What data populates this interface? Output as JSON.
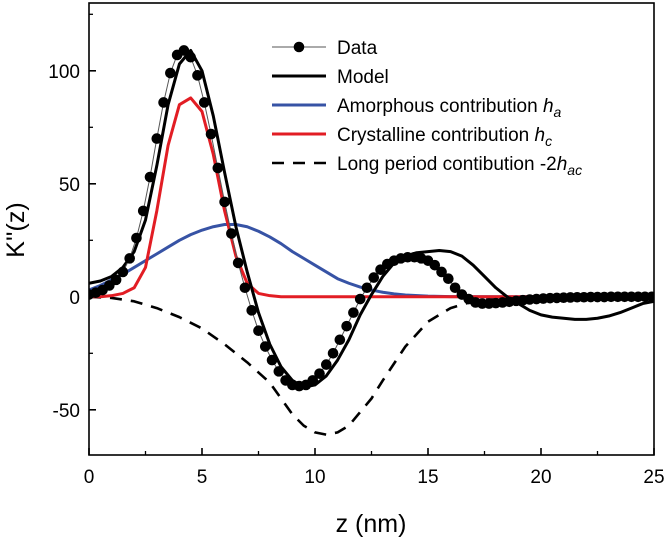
{
  "chart_data": {
    "type": "line",
    "xlabel": "z (nm)",
    "ylabel": "K''(z)",
    "xlim": [
      0,
      25
    ],
    "ylim": [
      -70,
      130
    ],
    "xticks": [
      0,
      5,
      10,
      15,
      20,
      25
    ],
    "xtick_labels": [
      "0",
      "5",
      "10",
      "15",
      "20",
      "25"
    ],
    "yticks": [
      -50,
      0,
      50,
      100
    ],
    "ytick_labels": [
      "-50",
      "0",
      "50",
      "100"
    ],
    "grid": false,
    "legend_position": "top-right",
    "series": [
      {
        "name": "Data",
        "style": "line+markers",
        "color": "#000000",
        "x": [
          0,
          0.3,
          0.6,
          0.9,
          1.2,
          1.5,
          1.8,
          2.1,
          2.4,
          2.7,
          3.0,
          3.3,
          3.6,
          3.9,
          4.2,
          4.5,
          4.8,
          5.1,
          5.4,
          5.7,
          6.0,
          6.3,
          6.6,
          6.9,
          7.2,
          7.5,
          7.8,
          8.1,
          8.4,
          8.7,
          9.0,
          9.3,
          9.6,
          9.9,
          10.2,
          10.5,
          10.8,
          11.1,
          11.4,
          11.7,
          12.0,
          12.3,
          12.6,
          12.9,
          13.2,
          13.5,
          13.8,
          14.1,
          14.4,
          14.7,
          15.0,
          15.3,
          15.6,
          15.9,
          16.2,
          16.5,
          16.8,
          17.1,
          17.4,
          17.7,
          18.0,
          18.3,
          18.6,
          18.9,
          19.2,
          19.5,
          19.8,
          20.1,
          20.4,
          20.7,
          21.0,
          21.3,
          21.6,
          21.9,
          22.2,
          22.5,
          22.8,
          23.1,
          23.4,
          23.7,
          24.0,
          24.3,
          24.6,
          24.9
        ],
        "y": [
          1,
          1.8,
          3,
          5,
          7.5,
          11,
          17,
          26,
          38,
          53,
          70,
          86,
          99,
          107,
          109,
          106,
          98,
          86,
          72,
          57,
          42,
          28,
          15,
          4,
          -6,
          -15,
          -22,
          -28,
          -33,
          -37,
          -39,
          -39.5,
          -39,
          -37,
          -34,
          -30,
          -25,
          -19,
          -13,
          -7,
          -1,
          4,
          8.5,
          12,
          14.5,
          16,
          17,
          17.5,
          17.5,
          17,
          16,
          14,
          11,
          8,
          4,
          1,
          -1,
          -2.5,
          -3,
          -3,
          -2.8,
          -2.5,
          -2.2,
          -1.8,
          -1.5,
          -1.2,
          -1,
          -0.8,
          -0.6,
          -0.5,
          -0.4,
          -0.3,
          -0.2,
          -0.2,
          -0.1,
          -0.1,
          -0.1,
          0,
          0,
          0,
          0,
          0,
          0,
          0
        ]
      },
      {
        "name": "Model",
        "style": "line",
        "color": "#000000",
        "x": [
          0,
          0.5,
          1,
          1.5,
          2,
          2.5,
          3,
          3.5,
          4,
          4.5,
          5,
          5.5,
          6,
          6.5,
          7,
          7.5,
          8,
          8.5,
          9,
          9.5,
          10,
          10.5,
          11,
          11.5,
          12,
          12.5,
          13,
          13.5,
          14,
          14.5,
          15,
          15.5,
          16,
          16.5,
          17,
          17.5,
          18,
          18.5,
          19,
          19.5,
          20,
          20.5,
          21,
          21.5,
          22,
          22.5,
          23,
          23.5,
          24,
          24.5,
          25
        ],
        "y": [
          6,
          7,
          9,
          13,
          20,
          34,
          58,
          85,
          103,
          109,
          100,
          80,
          55,
          31,
          11,
          -7,
          -21,
          -31,
          -37,
          -40,
          -39,
          -35,
          -28,
          -19,
          -8,
          1,
          9,
          15,
          18,
          19.5,
          20,
          20.5,
          20,
          18,
          14,
          9,
          4,
          0,
          -3,
          -6,
          -8,
          -9,
          -9.5,
          -10,
          -10,
          -9.5,
          -8.5,
          -7,
          -5,
          -3,
          -2
        ]
      },
      {
        "name": "Amorphous contribution h_a",
        "style": "line",
        "color": "#3753a5",
        "x": [
          0,
          0.5,
          1,
          1.5,
          2,
          2.5,
          3,
          3.5,
          4,
          4.5,
          5,
          5.5,
          6,
          6.5,
          7,
          7.5,
          8,
          8.5,
          9,
          9.5,
          10,
          10.5,
          11,
          11.5,
          12,
          12.5,
          13,
          13.5,
          14,
          15,
          16,
          18,
          20,
          22,
          25
        ],
        "y": [
          3,
          5,
          7.5,
          10,
          13,
          16,
          19,
          22,
          25,
          27.5,
          29.5,
          31,
          32,
          32,
          31,
          29,
          26.5,
          23.5,
          20,
          17,
          14,
          11,
          8,
          6,
          4.3,
          3,
          2,
          1.3,
          0.8,
          0.3,
          0.1,
          0,
          0,
          0,
          0
        ]
      },
      {
        "name": "Crystalline contribution h_c",
        "style": "line",
        "color": "#e21d24",
        "x": [
          0,
          0.5,
          1,
          1.5,
          2,
          2.5,
          3,
          3.5,
          4,
          4.5,
          5,
          5.5,
          6,
          6.5,
          7,
          7.5,
          8,
          8.5,
          9,
          10,
          12,
          15,
          20,
          25
        ],
        "y": [
          0,
          0,
          0.5,
          1.5,
          4,
          13,
          38,
          67,
          85,
          88,
          82,
          63,
          38,
          18,
          6,
          1.5,
          0.5,
          0,
          0,
          0,
          0,
          0,
          0,
          0
        ]
      },
      {
        "name": "Long period contibution -2h_ac",
        "style": "dashed",
        "color": "#000000",
        "x": [
          0,
          1,
          2,
          3,
          4,
          5,
          6,
          7,
          8,
          8.5,
          9,
          9.5,
          10,
          10.5,
          11,
          11.5,
          12,
          12.5,
          13,
          14,
          15,
          16,
          17,
          18,
          19,
          20,
          21,
          22,
          23,
          24,
          25
        ],
        "y": [
          0,
          -0.5,
          -2,
          -5,
          -9,
          -14,
          -21,
          -29,
          -38,
          -45,
          -52,
          -57,
          -60,
          -61,
          -60,
          -57,
          -51,
          -45,
          -37,
          -22,
          -11,
          -5,
          -2,
          -0.5,
          0,
          0,
          0,
          0,
          0,
          0,
          0
        ]
      }
    ],
    "legend": [
      {
        "label": "Data",
        "sub": ""
      },
      {
        "label": "Model",
        "sub": ""
      },
      {
        "label": "Amorphous contribution h",
        "sub": "a"
      },
      {
        "label": "Crystalline contribution h",
        "sub": "c"
      },
      {
        "label": "Long period contibution -2h",
        "sub": "ac"
      }
    ]
  }
}
